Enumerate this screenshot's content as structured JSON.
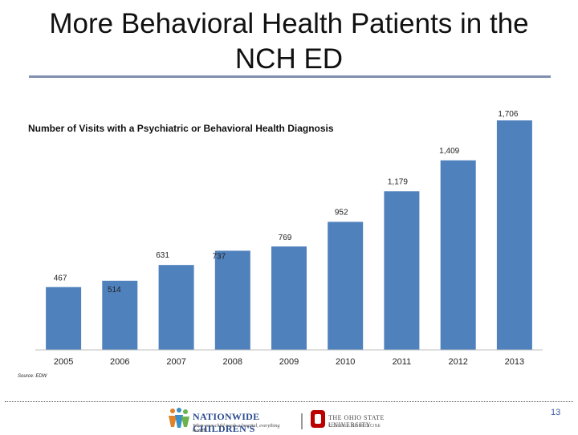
{
  "slide": {
    "title": "More Behavioral Health Patients in the NCH ED",
    "source": "Source: EDW",
    "page_number": "13"
  },
  "logos": {
    "nch_name": "NATIONWIDE CHILDREN'S",
    "nch_tagline": "When your child needs a hospital, everything matters.",
    "osu_name": "THE OHIO STATE UNIVERSITY",
    "osu_college": "COLLEGE OF MEDICINE"
  },
  "colors": {
    "bar": "#4f81bd",
    "accent": "#3a5a9f"
  },
  "chart_data": {
    "type": "bar",
    "title": "Number of Visits with a Psychiatric or Behavioral Health Diagnosis",
    "categories": [
      "2005",
      "2006",
      "2007",
      "2008",
      "2009",
      "2010",
      "2011",
      "2012",
      "2013"
    ],
    "values": [
      467,
      514,
      631,
      737,
      769,
      952,
      1179,
      1409,
      1706
    ],
    "labels": [
      "467",
      "514",
      "631",
      "737",
      "769",
      "952",
      "1,179",
      "1,409",
      "1,706"
    ],
    "xlabel": "",
    "ylabel": "",
    "ylim": [
      0,
      1706
    ],
    "grid": false,
    "legend": "none"
  }
}
